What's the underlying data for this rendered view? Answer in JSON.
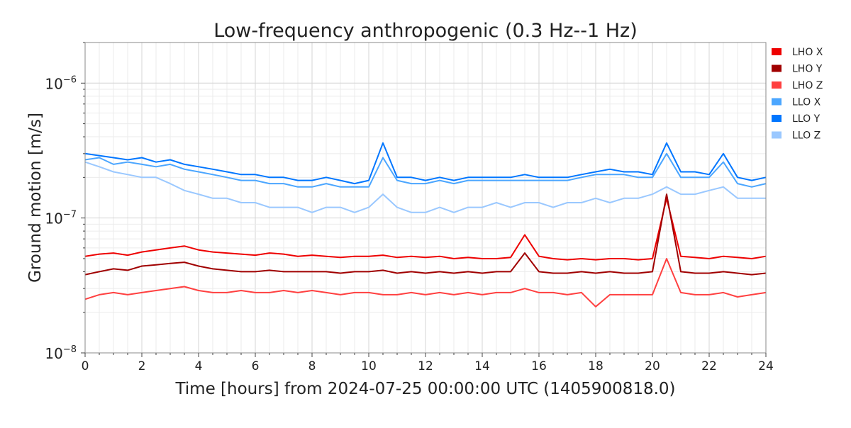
{
  "chart_data": {
    "type": "line",
    "title": "Low-frequency anthropogenic (0.3 Hz--1 Hz)",
    "xlabel": "Time [hours] from 2024-07-25 00:00:00 UTC (1405900818.0)",
    "ylabel": "Ground motion [m/s]",
    "xlim": [
      0,
      24
    ],
    "ylim": [
      1e-08,
      2e-06
    ],
    "yscale": "log",
    "grid": true,
    "legend_position": "right-outside-top",
    "x_ticks": [
      "0",
      "2",
      "4",
      "6",
      "8",
      "10",
      "12",
      "14",
      "16",
      "18",
      "20",
      "22",
      "24"
    ],
    "y_ticks": [
      {
        "base": "10",
        "exp": "−6",
        "value": 1e-06
      },
      {
        "base": "10",
        "exp": "−7",
        "value": 1e-07
      },
      {
        "base": "10",
        "exp": "−8",
        "value": 1e-08
      }
    ],
    "value_scale": 1e-07,
    "x_step_hours": 0.5,
    "series": [
      {
        "name": "LHO X",
        "color": "#ee0000",
        "values": [
          0.52,
          0.54,
          0.55,
          0.53,
          0.56,
          0.58,
          0.6,
          0.62,
          0.58,
          0.56,
          0.55,
          0.54,
          0.53,
          0.55,
          0.54,
          0.52,
          0.53,
          0.52,
          0.51,
          0.52,
          0.52,
          0.53,
          0.51,
          0.52,
          0.51,
          0.52,
          0.5,
          0.51,
          0.5,
          0.5,
          0.51,
          0.75,
          0.52,
          0.5,
          0.49,
          0.5,
          0.49,
          0.5,
          0.5,
          0.49,
          0.5,
          1.4,
          0.52,
          0.51,
          0.5,
          0.52,
          0.51,
          0.5,
          0.52
        ]
      },
      {
        "name": "LHO Y",
        "color": "#a00000",
        "values": [
          0.38,
          0.4,
          0.42,
          0.41,
          0.44,
          0.45,
          0.46,
          0.47,
          0.44,
          0.42,
          0.41,
          0.4,
          0.4,
          0.41,
          0.4,
          0.4,
          0.4,
          0.4,
          0.39,
          0.4,
          0.4,
          0.41,
          0.39,
          0.4,
          0.39,
          0.4,
          0.39,
          0.4,
          0.39,
          0.4,
          0.4,
          0.55,
          0.4,
          0.39,
          0.39,
          0.4,
          0.39,
          0.4,
          0.39,
          0.39,
          0.4,
          1.5,
          0.4,
          0.39,
          0.39,
          0.4,
          0.39,
          0.38,
          0.39
        ]
      },
      {
        "name": "LHO Z",
        "color": "#ff4040",
        "values": [
          0.25,
          0.27,
          0.28,
          0.27,
          0.28,
          0.29,
          0.3,
          0.31,
          0.29,
          0.28,
          0.28,
          0.29,
          0.28,
          0.28,
          0.29,
          0.28,
          0.29,
          0.28,
          0.27,
          0.28,
          0.28,
          0.27,
          0.27,
          0.28,
          0.27,
          0.28,
          0.27,
          0.28,
          0.27,
          0.28,
          0.28,
          0.3,
          0.28,
          0.28,
          0.27,
          0.28,
          0.22,
          0.27,
          0.27,
          0.27,
          0.27,
          0.5,
          0.28,
          0.27,
          0.27,
          0.28,
          0.26,
          0.27,
          0.28
        ]
      },
      {
        "name": "LLO X",
        "color": "#4ba6ff",
        "values": [
          2.7,
          2.8,
          2.5,
          2.6,
          2.5,
          2.4,
          2.5,
          2.3,
          2.2,
          2.1,
          2.0,
          1.9,
          1.9,
          1.8,
          1.8,
          1.7,
          1.7,
          1.8,
          1.7,
          1.7,
          1.7,
          2.8,
          1.9,
          1.8,
          1.8,
          1.9,
          1.8,
          1.9,
          1.9,
          1.9,
          1.9,
          1.9,
          1.9,
          1.9,
          1.9,
          2.0,
          2.1,
          2.1,
          2.1,
          2.0,
          2.0,
          3.0,
          2.0,
          2.0,
          2.0,
          2.6,
          1.8,
          1.7,
          1.8
        ]
      },
      {
        "name": "LLO Y",
        "color": "#0076ff",
        "values": [
          3.0,
          2.9,
          2.8,
          2.7,
          2.8,
          2.6,
          2.7,
          2.5,
          2.4,
          2.3,
          2.2,
          2.1,
          2.1,
          2.0,
          2.0,
          1.9,
          1.9,
          2.0,
          1.9,
          1.8,
          1.9,
          3.6,
          2.0,
          2.0,
          1.9,
          2.0,
          1.9,
          2.0,
          2.0,
          2.0,
          2.0,
          2.1,
          2.0,
          2.0,
          2.0,
          2.1,
          2.2,
          2.3,
          2.2,
          2.2,
          2.1,
          3.6,
          2.2,
          2.2,
          2.1,
          3.0,
          2.0,
          1.9,
          2.0
        ]
      },
      {
        "name": "LLO Z",
        "color": "#9ac8ff",
        "values": [
          2.6,
          2.4,
          2.2,
          2.1,
          2.0,
          2.0,
          1.8,
          1.6,
          1.5,
          1.4,
          1.4,
          1.3,
          1.3,
          1.2,
          1.2,
          1.2,
          1.1,
          1.2,
          1.2,
          1.1,
          1.2,
          1.5,
          1.2,
          1.1,
          1.1,
          1.2,
          1.1,
          1.2,
          1.2,
          1.3,
          1.2,
          1.3,
          1.3,
          1.2,
          1.3,
          1.3,
          1.4,
          1.3,
          1.4,
          1.4,
          1.5,
          1.7,
          1.5,
          1.5,
          1.6,
          1.7,
          1.4,
          1.4,
          1.4
        ]
      }
    ]
  }
}
